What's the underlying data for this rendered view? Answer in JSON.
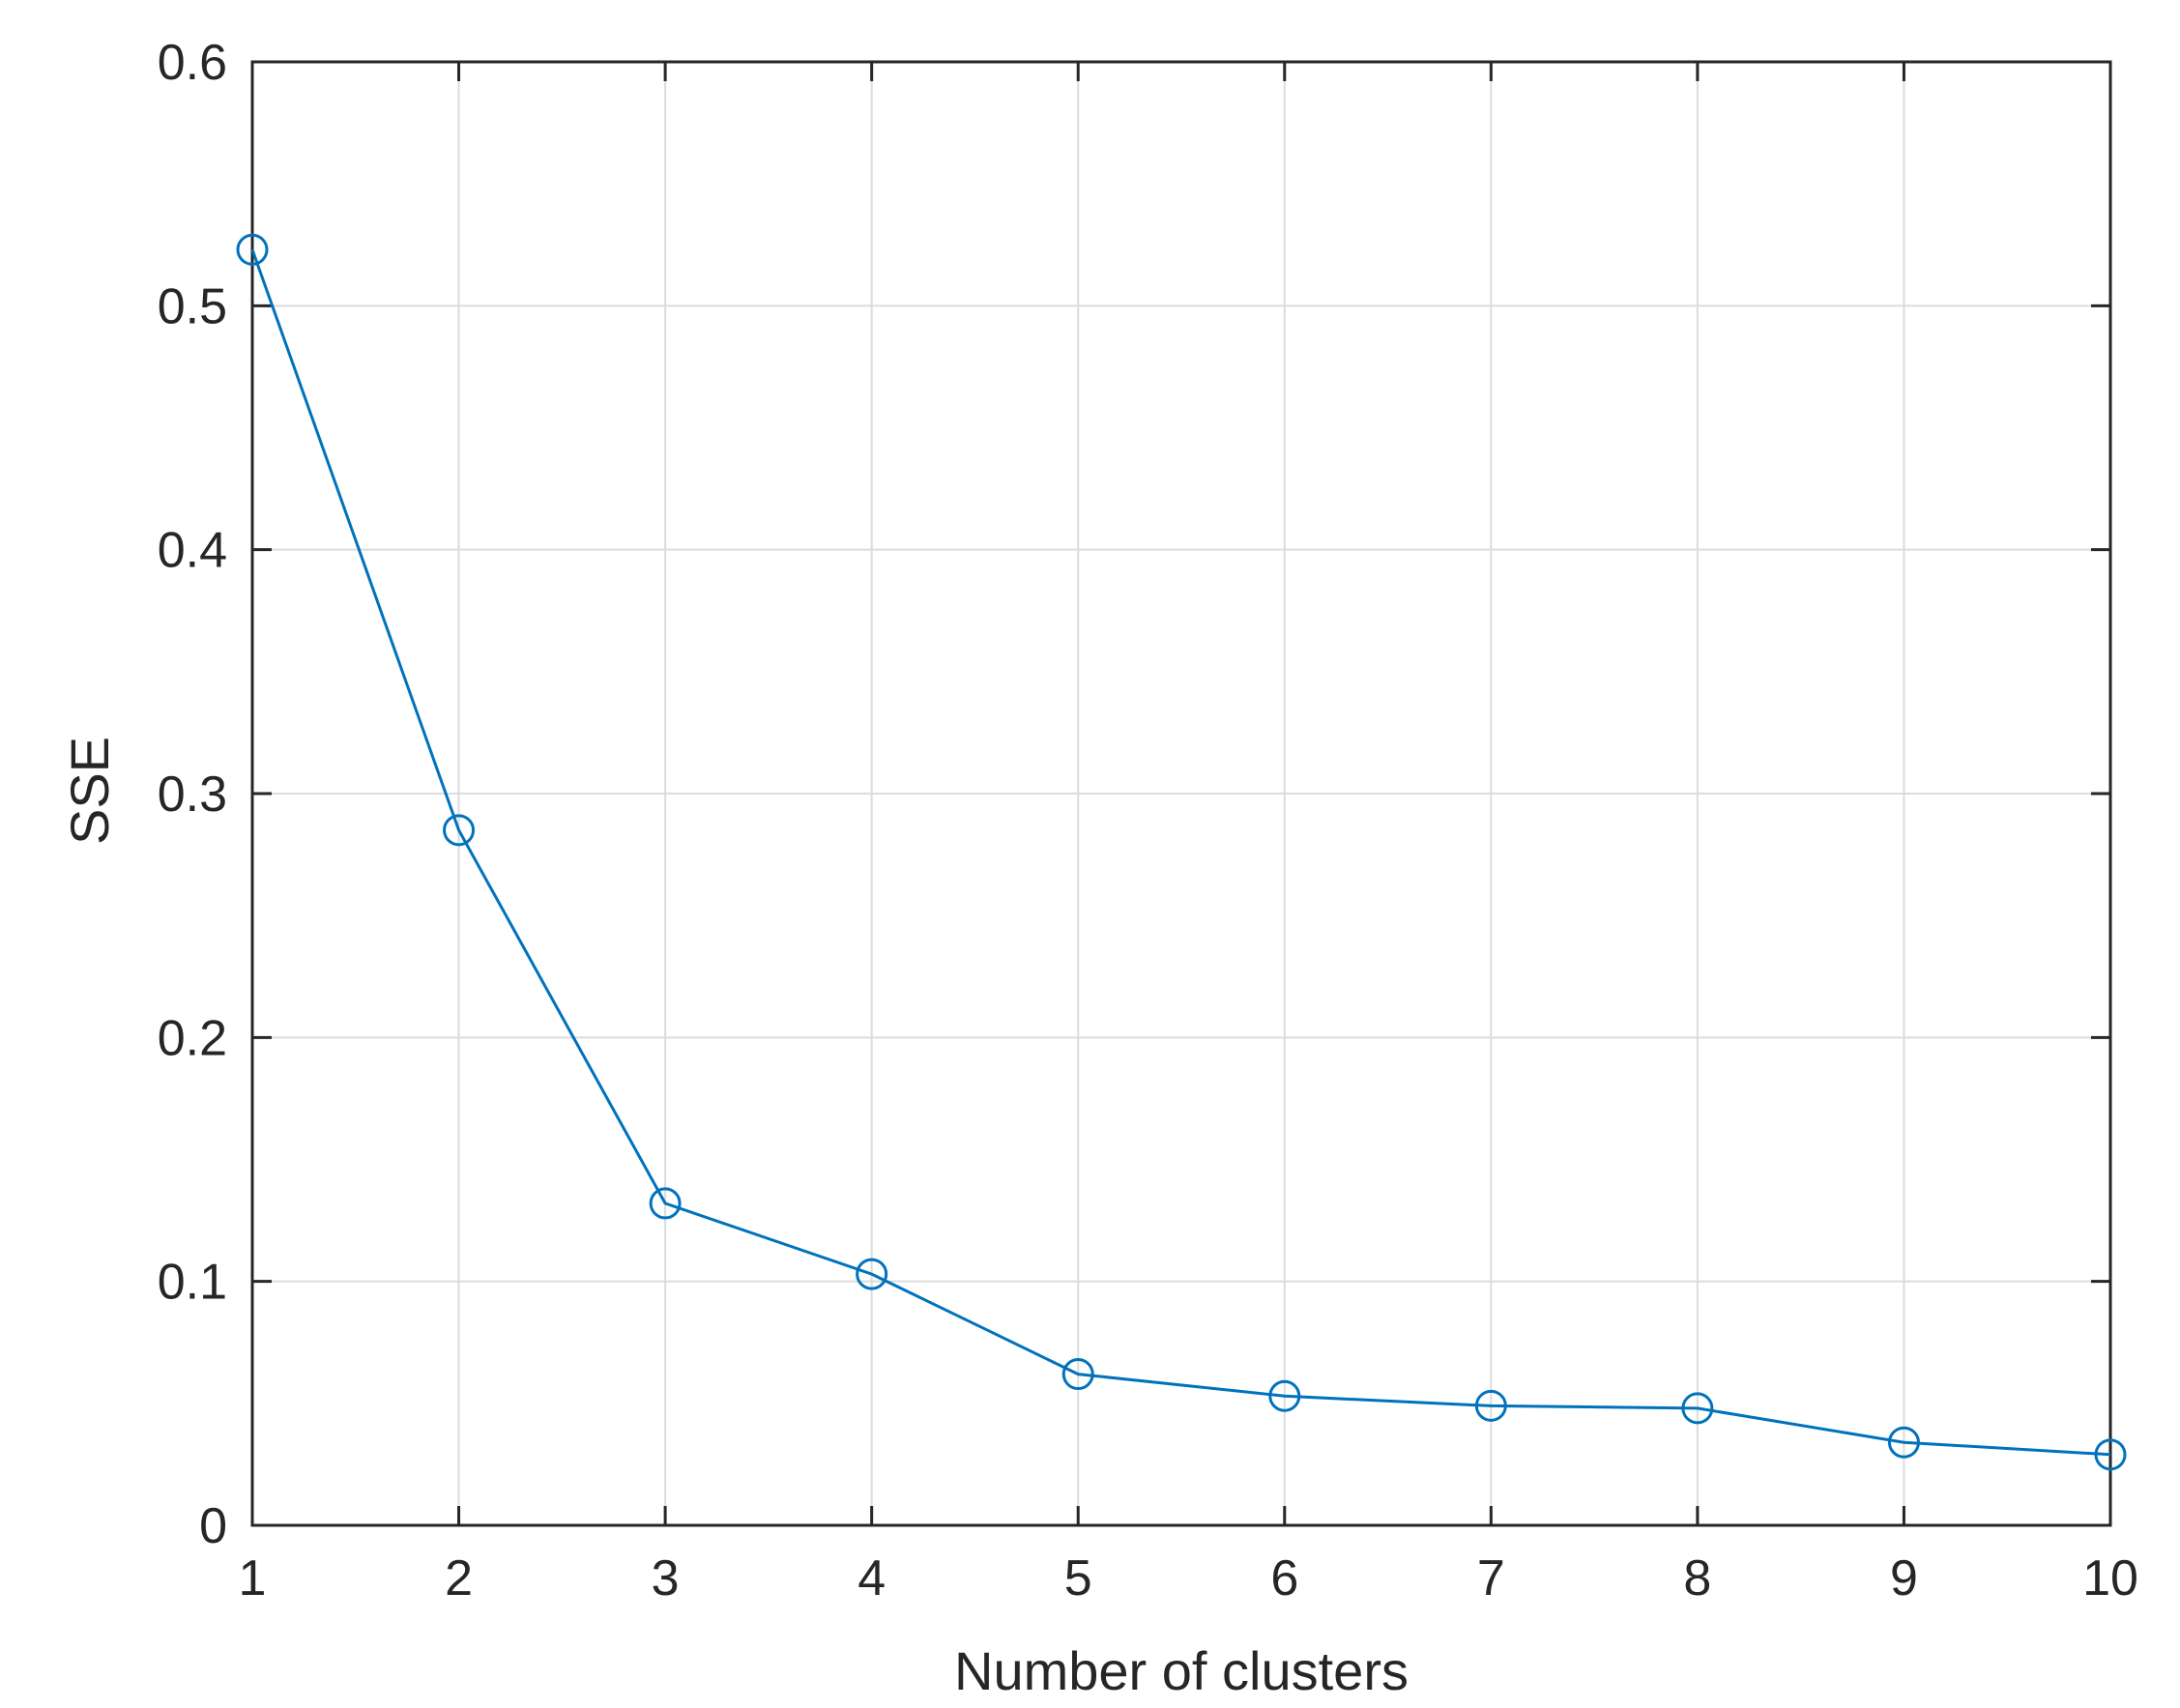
{
  "chart_data": {
    "type": "line",
    "title": "",
    "xlabel": "Number of clusters",
    "ylabel": "SSE",
    "x": [
      1,
      2,
      3,
      4,
      5,
      6,
      7,
      8,
      9,
      10
    ],
    "series": [
      {
        "values": [
          0.523,
          0.285,
          0.132,
          0.103,
          0.062,
          0.053,
          0.049,
          0.048,
          0.034,
          0.029
        ],
        "color": "#0072BD",
        "marker": "circle"
      }
    ],
    "xlim": [
      1,
      10
    ],
    "ylim": [
      0,
      0.6
    ],
    "xticks": [
      1,
      2,
      3,
      4,
      5,
      6,
      7,
      8,
      9,
      10
    ],
    "xtick_labels": [
      "1",
      "2",
      "3",
      "4",
      "5",
      "6",
      "7",
      "8",
      "9",
      "10"
    ],
    "yticks": [
      0,
      0.1,
      0.2,
      0.3,
      0.4,
      0.5,
      0.6
    ],
    "ytick_labels": [
      "0",
      "0.1",
      "0.2",
      "0.3",
      "0.4",
      "0.5",
      "0.6"
    ],
    "grid": true,
    "legend": "none"
  }
}
